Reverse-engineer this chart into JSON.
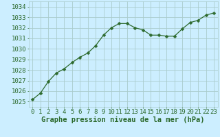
{
  "x": [
    0,
    1,
    2,
    3,
    4,
    5,
    6,
    7,
    8,
    9,
    10,
    11,
    12,
    13,
    14,
    15,
    16,
    17,
    18,
    19,
    20,
    21,
    22,
    23
  ],
  "y": [
    1025.2,
    1025.8,
    1026.9,
    1027.7,
    1028.1,
    1028.7,
    1029.2,
    1029.6,
    1030.3,
    1031.3,
    1032.0,
    1032.4,
    1032.4,
    1032.0,
    1031.8,
    1031.3,
    1031.3,
    1031.2,
    1031.2,
    1031.9,
    1032.5,
    1032.7,
    1033.2,
    1033.4
  ],
  "line_color": "#2d6a2d",
  "marker": "D",
  "marker_size": 2.5,
  "bg_color": "#cceeff",
  "grid_color": "#aacccc",
  "xlabel": "Graphe pression niveau de la mer (hPa)",
  "xlabel_color": "#2d6a2d",
  "xlabel_fontsize": 7.5,
  "tick_fontsize": 6.5,
  "ytick_labels": [
    "1025",
    "1026",
    "1027",
    "1028",
    "1029",
    "1030",
    "1031",
    "1032",
    "1033",
    "1034"
  ],
  "yticks": [
    1025,
    1026,
    1027,
    1028,
    1029,
    1030,
    1031,
    1032,
    1033,
    1034
  ],
  "ylim": [
    1024.5,
    1034.5
  ],
  "xlim": [
    -0.5,
    23.5
  ],
  "xtick_labels": [
    "0",
    "1",
    "2",
    "3",
    "4",
    "5",
    "6",
    "7",
    "8",
    "9",
    "10",
    "11",
    "12",
    "13",
    "14",
    "15",
    "16",
    "17",
    "18",
    "19",
    "20",
    "21",
    "22",
    "23"
  ]
}
